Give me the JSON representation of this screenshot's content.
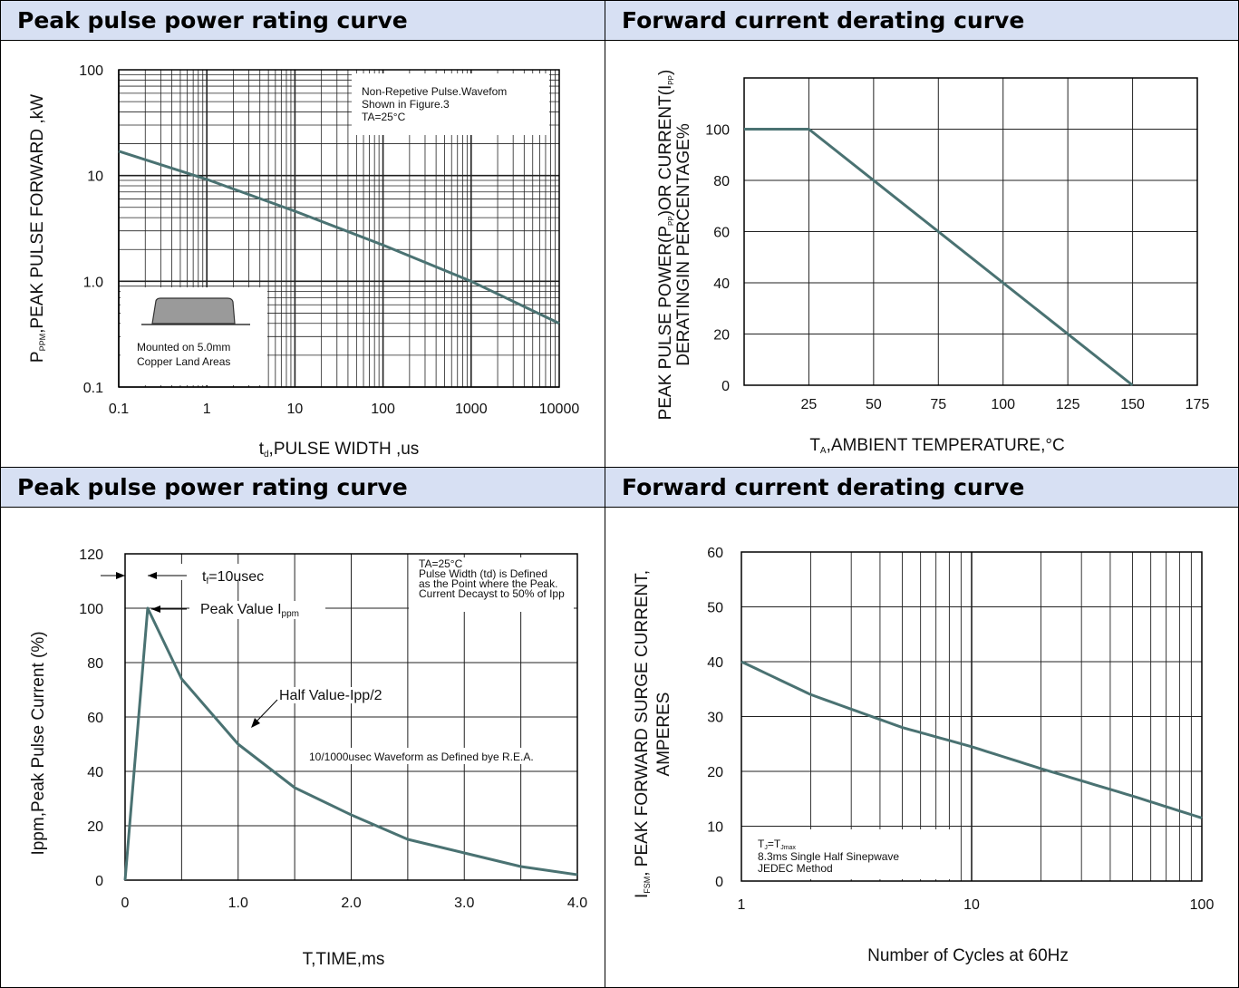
{
  "colors": {
    "header_bg": "#d7e0f3",
    "curve": "#4a7272",
    "grid": "#222222"
  },
  "headers": {
    "tl": "Peak pulse power rating curve",
    "tr": "Forward current derating curve",
    "bl": "Peak pulse power rating curve",
    "br": "Forward current derating curve"
  },
  "chart_data": [
    {
      "type": "line",
      "title": "Peak pulse power rating curve",
      "xscale": "log",
      "yscale": "log",
      "xlim": [
        0.1,
        10000
      ],
      "ylim": [
        0.1,
        100
      ],
      "xticks": [
        "0.1",
        "1",
        "10",
        "100",
        "1000",
        "10000"
      ],
      "yticks": [
        "100",
        "10",
        "1.0",
        "0.1"
      ],
      "xlabel": "tₐ,PULSE WIDTH ,us",
      "xlabel_main": "t",
      "xlabel_sub": "d",
      "xlabel_rest": ",PULSE WIDTH ,us",
      "ylabel_main": "P",
      "ylabel_sub": "PPM",
      "ylabel_rest": ",PEAK PULSE  FORWARD ,kW",
      "series": [
        {
          "x": [
            0.1,
            1,
            10,
            100,
            1000,
            10000
          ],
          "y": [
            17,
            9.2,
            4.6,
            2.2,
            1.0,
            0.4
          ]
        }
      ],
      "annotation": [
        "Non-Repetive  Pulse.Wavefom",
        "Shown in Figure.3",
        "Tₐ=25°C"
      ],
      "annotation_lines": [
        "Non-Repetive  Pulse.Wavefom",
        "Shown in Figure.3",
        "TA=25°C"
      ],
      "inset_text": [
        "Mounted on 5.0mm",
        "Copper Land Areas"
      ],
      "grid": true
    },
    {
      "type": "line",
      "title": "Forward current derating curve",
      "xlim": [
        0,
        175
      ],
      "ylim": [
        0,
        120
      ],
      "xticks": [
        25,
        50,
        75,
        100,
        125,
        150,
        175
      ],
      "yticks": [
        0,
        20,
        40,
        60,
        80,
        100
      ],
      "xlabel_main": "T",
      "xlabel_sub": "A",
      "xlabel_rest": ",AMBIENT TEMPERATURE,°C",
      "ylabel_line1": "PEAK PULSE  POWER(P  )OR CURRENT(I  )",
      "ylabel_line1_a": "PEAK PULSE  POWER(P",
      "ylabel_line1_sub1": "PP",
      "ylabel_line1_b": ")OR CURRENT(I",
      "ylabel_line1_sub2": "PP",
      "ylabel_line1_c": ")",
      "ylabel_line2": "DERATINGIN PERCENTAGE%",
      "series": [
        {
          "x": [
            0,
            25,
            150
          ],
          "y": [
            100,
            100,
            0
          ]
        }
      ],
      "grid": true
    },
    {
      "type": "line",
      "title": "Peak pulse power rating curve",
      "xlim": [
        0,
        4.0
      ],
      "ylim": [
        0,
        120
      ],
      "xticks": [
        "0",
        "1.0",
        "2.0",
        "3.0",
        "4.0"
      ],
      "yticks": [
        "0",
        "20",
        "40",
        "60",
        "80",
        "100",
        "120"
      ],
      "xlabel": "T,TIME,ms",
      "ylabel": "Ippm,Peak Pulse Current (%)",
      "series": [
        {
          "x": [
            0,
            0.2,
            0.5,
            1.0,
            1.5,
            2.0,
            2.5,
            3.0,
            3.5,
            4.0
          ],
          "y": [
            0,
            100,
            74,
            50,
            34,
            24,
            15,
            10,
            5,
            2
          ]
        }
      ],
      "tf_label": "tᶠ=10usec",
      "tf_main": "t",
      "tf_sub": "f",
      "tf_rest": "=10usec",
      "peak_label": "Peak   Value   I",
      "peak_sub": "ppm",
      "half_label": "Half  Value-Ipp/2",
      "waveform_label": "10/1000usec  Waveform as Defined bye R.E.A.",
      "note_lines": [
        "TA=25°C",
        "Pulse  Width (td) is  Defined",
        "as the Point  where the Peak.",
        "Current  Decayst to 50% of Ipp"
      ],
      "grid": true
    },
    {
      "type": "line",
      "title": "Forward current derating curve",
      "xscale": "log",
      "xlim": [
        1,
        100
      ],
      "ylim": [
        0,
        60
      ],
      "xticks": [
        "1",
        "10",
        "100"
      ],
      "yticks": [
        "0",
        "10",
        "20",
        "30",
        "40",
        "50",
        "60"
      ],
      "xlabel": "Number of Cycles at 60Hz",
      "ylabel_line1_main": "I",
      "ylabel_line1_sub": "FSM",
      "ylabel_line1_rest": ", PEAK FORWARD SURGE CURRENT,",
      "ylabel_line2": "AMPERES",
      "series": [
        {
          "x": [
            1,
            2,
            5,
            10,
            20,
            50,
            100
          ],
          "y": [
            40,
            34,
            28,
            24.5,
            20.5,
            15.5,
            11.5
          ]
        }
      ],
      "note_lines": [
        "TJ=TJmax",
        "8.3ms Single Half  Sinepwave",
        "JEDEC Method"
      ],
      "grid": true
    }
  ]
}
